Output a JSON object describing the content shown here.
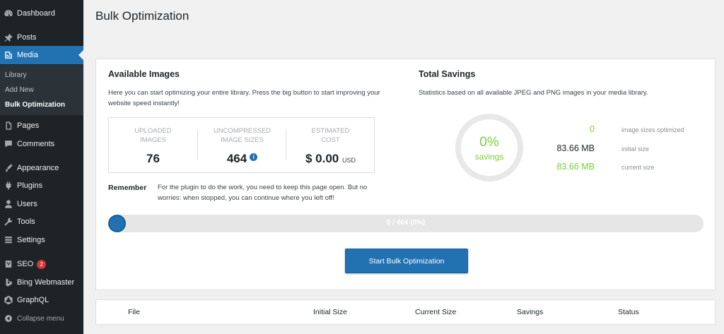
{
  "sidebar": {
    "items": [
      {
        "label": "Dashboard",
        "icon": "dashboard-icon"
      },
      {
        "label": "Posts",
        "icon": "pin-icon"
      },
      {
        "label": "Media",
        "icon": "media-icon",
        "active": true
      },
      {
        "label": "Pages",
        "icon": "pages-icon"
      },
      {
        "label": "Comments",
        "icon": "comments-icon"
      },
      {
        "label": "Appearance",
        "icon": "brush-icon"
      },
      {
        "label": "Plugins",
        "icon": "plugin-icon"
      },
      {
        "label": "Users",
        "icon": "users-icon"
      },
      {
        "label": "Tools",
        "icon": "wrench-icon"
      },
      {
        "label": "Settings",
        "icon": "settings-icon"
      },
      {
        "label": "SEO",
        "icon": "yoast-icon",
        "badge": "2"
      },
      {
        "label": "Bing Webmaster",
        "icon": "bing-icon"
      },
      {
        "label": "GraphQL",
        "icon": "graphql-icon"
      },
      {
        "label": "Collapse menu",
        "icon": "collapse-icon"
      }
    ],
    "submenu": [
      {
        "label": "Library"
      },
      {
        "label": "Add New"
      },
      {
        "label": "Bulk Optimization",
        "current": true
      }
    ]
  },
  "page": {
    "title": "Bulk Optimization"
  },
  "available": {
    "heading": "Available Images",
    "description": "Here you can start optimizing your entire library. Press the big button to start improving your website speed instantly!",
    "stats": [
      {
        "caption_line1": "UPLOADED",
        "caption_line2": "IMAGES",
        "value": "76"
      },
      {
        "caption_line1": "UNCOMPRESSED",
        "caption_line2": "IMAGE SIZES",
        "value": "464",
        "info_icon": "i"
      },
      {
        "caption_line1": "ESTIMATED",
        "caption_line2": "COST",
        "value": "$ 0.00",
        "unit": "USD"
      }
    ],
    "remember_label": "Remember",
    "remember_text": "For the plugin to do the work, you need to keep this page open. But no worries: when stopped, you can continue where you left off!"
  },
  "savings": {
    "heading": "Total Savings",
    "description": "Statistics based on all available JPEG and PNG images in your media library.",
    "percent": "0%",
    "percent_label": "savings",
    "rows": [
      {
        "value": "0",
        "label": "image sizes optimized"
      },
      {
        "value": "83.66 MB",
        "label": "initial size"
      },
      {
        "value": "83.66 MB",
        "label": "current size"
      }
    ]
  },
  "progress": {
    "text": "0 / 464 (0%)",
    "fraction": 0
  },
  "start_button": "Start Bulk Optimization",
  "table": {
    "headers": [
      "File",
      "Initial Size",
      "Current Size",
      "Savings",
      "Status"
    ]
  },
  "colors": {
    "accent": "#2271b1",
    "sidebar_bg": "#1d2327",
    "green": "#7ad03a"
  }
}
